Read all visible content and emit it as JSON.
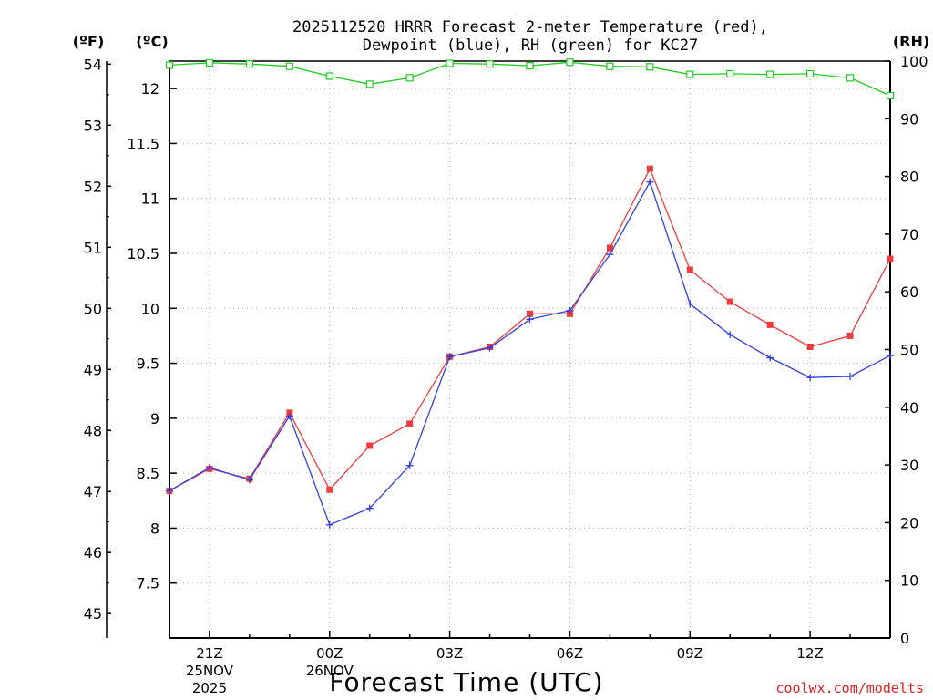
{
  "chart_data": {
    "type": "line",
    "title_line1": "2025112520 HRRR Forecast 2-meter Temperature (red),",
    "title_line2": "Dewpoint (blue), RH (green) for KC27",
    "left_outer_axis_label": "(ºF)",
    "left_inner_axis_label": "(ºC)",
    "right_axis_label": "(RH)",
    "xlabel": "Forecast Time (UTC)",
    "credit": "coolwx.com/modelts",
    "celsius_ylim": [
      7.0,
      12.25
    ],
    "fahrenheit_ticks": [
      "45",
      "46",
      "47",
      "48",
      "49",
      "50",
      "51",
      "52",
      "53",
      "54"
    ],
    "celsius_ticks": [
      "7.5",
      "8",
      "8.5",
      "9",
      "9.5",
      "10",
      "10.5",
      "11",
      "11.5",
      "12"
    ],
    "rh_ylim": [
      0,
      100
    ],
    "rh_ticks": [
      "0",
      "10",
      "20",
      "30",
      "40",
      "50",
      "60",
      "70",
      "80",
      "90",
      "100"
    ],
    "x_hours": [
      20,
      21,
      22,
      23,
      24,
      25,
      26,
      27,
      28,
      29,
      30,
      31,
      32,
      33,
      34,
      35,
      36,
      37,
      38
    ],
    "x_tick_labels": [
      {
        "hour": 21,
        "line1": "21Z",
        "line2": "25NOV",
        "line3": "2025"
      },
      {
        "hour": 24,
        "line1": "00Z",
        "line2": "26NOV",
        "line3": ""
      },
      {
        "hour": 27,
        "line1": "03Z",
        "line2": "",
        "line3": ""
      },
      {
        "hour": 30,
        "line1": "06Z",
        "line2": "",
        "line3": ""
      },
      {
        "hour": 33,
        "line1": "09Z",
        "line2": "",
        "line3": ""
      },
      {
        "hour": 36,
        "line1": "12Z",
        "line2": "",
        "line3": ""
      }
    ],
    "series": [
      {
        "name": "Temperature",
        "unit": "C",
        "color": "#f03c3c",
        "marker": "filled-square",
        "values": [
          8.34,
          8.54,
          8.45,
          9.05,
          8.35,
          8.75,
          8.95,
          9.56,
          9.65,
          9.95,
          9.95,
          10.55,
          11.27,
          10.35,
          10.06,
          9.85,
          9.65,
          9.75,
          10.45
        ]
      },
      {
        "name": "Dewpoint",
        "unit": "C",
        "color": "#3040e0",
        "marker": "plus",
        "values": [
          8.34,
          8.55,
          8.44,
          9.02,
          8.03,
          8.18,
          8.57,
          9.56,
          9.64,
          9.9,
          9.98,
          10.49,
          11.15,
          10.04,
          9.76,
          9.55,
          9.37,
          9.38,
          9.57
        ]
      },
      {
        "name": "RH",
        "unit": "%",
        "color": "#20cc20",
        "marker": "open-square",
        "values": [
          99.3,
          99.7,
          99.5,
          99.1,
          97.4,
          96.0,
          97.1,
          99.6,
          99.5,
          99.2,
          99.8,
          99.1,
          99.0,
          97.7,
          97.8,
          97.7,
          97.8,
          97.1,
          94.0
        ]
      }
    ]
  }
}
